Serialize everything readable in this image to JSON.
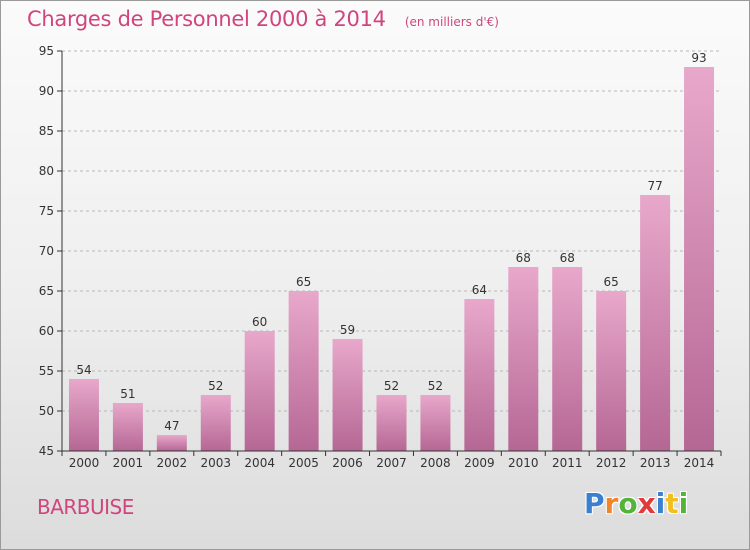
{
  "header": {
    "title": "Charges de Personnel 2000 à 2014",
    "subtitle": "(en milliers d'€)"
  },
  "commune": "BARBUISE",
  "logo": {
    "text": "Proxiti",
    "letter_colors": [
      "#3a7fd0",
      "#f0852a",
      "#56b33a",
      "#e23a3a",
      "#3a7fd0",
      "#f0c020",
      "#56b33a"
    ]
  },
  "colors": {
    "bar_top": "#e8a8cb",
    "bar_bottom": "#b56794",
    "axis": "#333333",
    "grid": "#b8b8b8",
    "accent": "#d0457d"
  },
  "chart_data": {
    "type": "bar",
    "title": "Charges de Personnel 2000 à 2014",
    "subtitle": "(en milliers d'€)",
    "categories": [
      "2000",
      "2001",
      "2002",
      "2003",
      "2004",
      "2005",
      "2006",
      "2007",
      "2008",
      "2009",
      "2010",
      "2011",
      "2012",
      "2013",
      "2014"
    ],
    "values": [
      54,
      51,
      47,
      52,
      60,
      65,
      59,
      52,
      52,
      64,
      68,
      68,
      65,
      77,
      93
    ],
    "ylim": [
      45,
      95
    ],
    "yticks": [
      45,
      50,
      55,
      60,
      65,
      70,
      75,
      80,
      85,
      90,
      95
    ],
    "grid": "horizontal-dashed",
    "legend": "none"
  }
}
